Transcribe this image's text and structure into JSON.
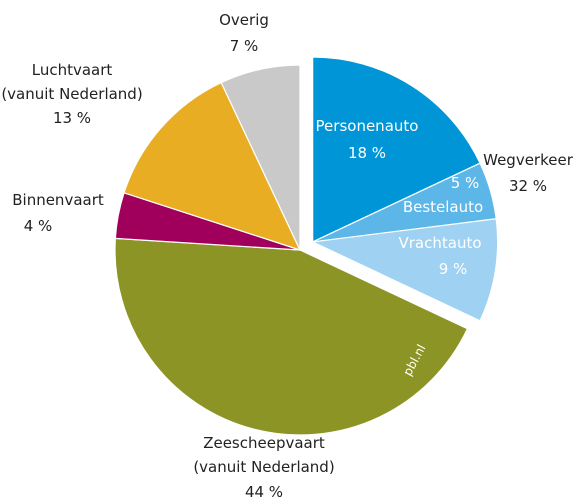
{
  "chart_data": {
    "type": "pie",
    "categories": [
      "Personenauto",
      "Bestelauto",
      "Vrachtauto",
      "Zeescheepvaart\n(vanuit Nederland)",
      "Binnenvaart",
      "Luchtvaart\n(vanuit Nederland)",
      "Overig"
    ],
    "values": [
      18,
      5,
      9,
      44,
      4,
      13,
      7
    ],
    "value_labels": [
      "18 %",
      "5 %",
      "9 %",
      "44 %",
      "4 %",
      "13 %",
      "7 %"
    ],
    "colors": [
      "#0095d6",
      "#5cb6e8",
      "#9fd1f2",
      "#8c9425",
      "#a0005c",
      "#e8ad22",
      "#c9c9c9"
    ],
    "group": {
      "name": "Wegverkeer",
      "value": 32,
      "value_label": "32 %",
      "slices": [
        0,
        1,
        2
      ]
    },
    "watermark": "pbl.nl"
  }
}
